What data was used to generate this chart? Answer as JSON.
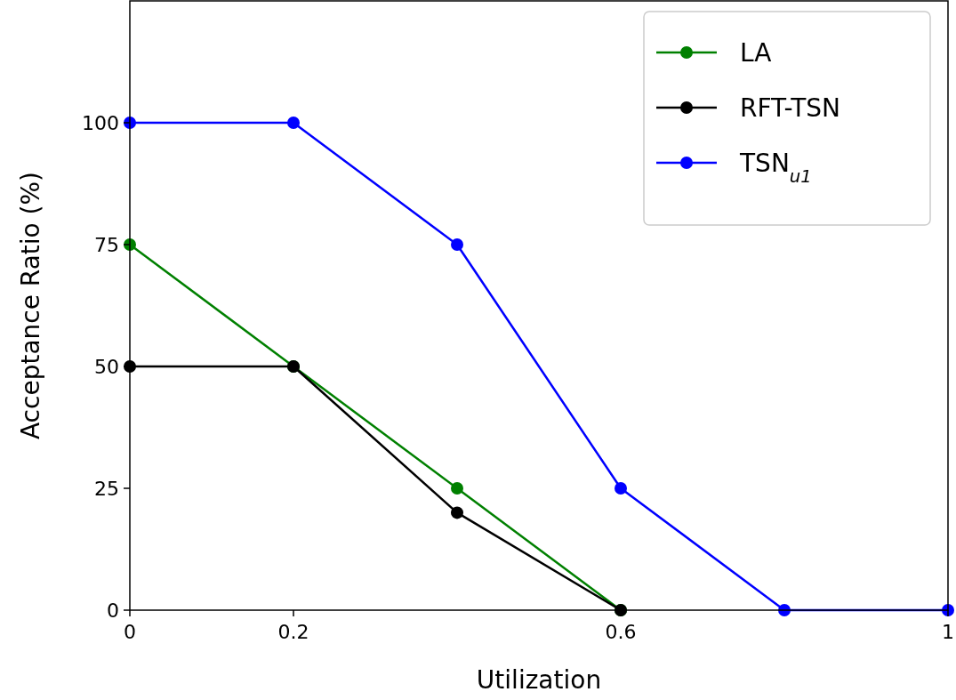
{
  "chart_data": {
    "type": "line",
    "xlabel": "Utilization",
    "ylabel": "Acceptance Ratio (%)",
    "x": [
      0,
      0.2,
      0.4,
      0.6,
      0.8,
      1
    ],
    "xlim": [
      0,
      1
    ],
    "xticks": [
      0,
      0.2,
      0.6,
      1
    ],
    "ylim": [
      0,
      125
    ],
    "yticks": [
      0,
      25,
      50,
      75,
      100
    ],
    "series": [
      {
        "name": "LA",
        "color": "#008000",
        "values": [
          75,
          50,
          25,
          0,
          null,
          null
        ]
      },
      {
        "name": "RFT-TSN",
        "color": "#000000",
        "values": [
          50,
          50,
          20,
          0,
          null,
          null
        ]
      },
      {
        "name": "TSN$_{u1}$",
        "color": "#0000ff",
        "values": [
          100,
          100,
          75,
          25,
          0,
          0
        ]
      }
    ],
    "marker": "circle",
    "line_style": "solid",
    "grid": false,
    "legend": "top right"
  }
}
